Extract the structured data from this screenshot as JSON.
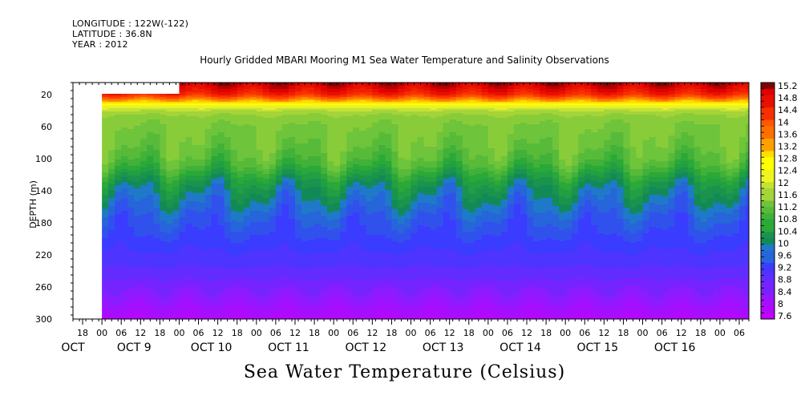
{
  "header": {
    "longitude": "LONGITUDE : 122W(-122)",
    "latitude": "LATITUDE : 36.8N",
    "year": "YEAR : 2012"
  },
  "colors": {
    "background": "#ffffff",
    "axis": "#000000"
  },
  "chart_data": {
    "type": "heatmap",
    "title": "Hourly Gridded MBARI Mooring M1 Sea Water Temperature and Salinity Observations",
    "ylabel": "DEPTH (m)",
    "caption": "Sea Water Temperature (Celsius)",
    "y_inverted": true,
    "y_range": [
      5,
      300
    ],
    "y_ticks": [
      20,
      60,
      100,
      140,
      180,
      220,
      260,
      300
    ],
    "x_range_hours": [
      -9,
      201
    ],
    "x_hour_ticks": [
      {
        "h": -6,
        "label": "18"
      },
      {
        "h": 0,
        "label": "00"
      },
      {
        "h": 6,
        "label": "06"
      },
      {
        "h": 12,
        "label": "12"
      },
      {
        "h": 18,
        "label": "18"
      },
      {
        "h": 24,
        "label": "00"
      },
      {
        "h": 30,
        "label": "06"
      },
      {
        "h": 36,
        "label": "12"
      },
      {
        "h": 42,
        "label": "18"
      },
      {
        "h": 48,
        "label": "00"
      },
      {
        "h": 54,
        "label": "06"
      },
      {
        "h": 60,
        "label": "12"
      },
      {
        "h": 66,
        "label": "18"
      },
      {
        "h": 72,
        "label": "00"
      },
      {
        "h": 78,
        "label": "06"
      },
      {
        "h": 84,
        "label": "12"
      },
      {
        "h": 90,
        "label": "18"
      },
      {
        "h": 96,
        "label": "00"
      },
      {
        "h": 102,
        "label": "06"
      },
      {
        "h": 108,
        "label": "12"
      },
      {
        "h": 114,
        "label": "18"
      },
      {
        "h": 120,
        "label": "00"
      },
      {
        "h": 126,
        "label": "06"
      },
      {
        "h": 132,
        "label": "12"
      },
      {
        "h": 138,
        "label": "18"
      },
      {
        "h": 144,
        "label": "00"
      },
      {
        "h": 150,
        "label": "06"
      },
      {
        "h": 156,
        "label": "12"
      },
      {
        "h": 162,
        "label": "18"
      },
      {
        "h": 168,
        "label": "00"
      },
      {
        "h": 174,
        "label": "06"
      },
      {
        "h": 180,
        "label": "12"
      },
      {
        "h": 186,
        "label": "18"
      },
      {
        "h": 192,
        "label": "00"
      },
      {
        "h": 198,
        "label": "06"
      }
    ],
    "x_date_labels": [
      {
        "h": 0,
        "label": "OCT  9"
      },
      {
        "h": 24,
        "label": "OCT 10"
      },
      {
        "h": 48,
        "label": "OCT 11"
      },
      {
        "h": 72,
        "label": "OCT 12"
      },
      {
        "h": 96,
        "label": "OCT 13"
      },
      {
        "h": 120,
        "label": "OCT 14"
      },
      {
        "h": 144,
        "label": "OCT 15"
      },
      {
        "h": 168,
        "label": "OCT 16"
      }
    ],
    "x_date_label_first": {
      "h": -9,
      "label": "OCT"
    },
    "data_start_hour": 0,
    "shallow_data_start_hour": 24,
    "shallow_data_start_depth": 20,
    "colorbar": {
      "min": 7.6,
      "max": 15.2,
      "step": 0.2,
      "labels": [
        15.2,
        14.8,
        14.4,
        14,
        13.6,
        13.2,
        12.8,
        12.4,
        12,
        11.6,
        11.2,
        10.8,
        10.4,
        10,
        9.6,
        9.2,
        8.8,
        8.4,
        8,
        7.6
      ],
      "stops": [
        {
          "v": 7.6,
          "c": "#c200ff"
        },
        {
          "v": 8.4,
          "c": "#8a1cff"
        },
        {
          "v": 9.2,
          "c": "#3a3cff"
        },
        {
          "v": 9.8,
          "c": "#1e7ac8"
        },
        {
          "v": 10.0,
          "c": "#128a58"
        },
        {
          "v": 10.6,
          "c": "#2aa838"
        },
        {
          "v": 11.2,
          "c": "#6ec43a"
        },
        {
          "v": 11.6,
          "c": "#a4d438"
        },
        {
          "v": 12.0,
          "c": "#e6f030"
        },
        {
          "v": 12.6,
          "c": "#ffff00"
        },
        {
          "v": 13.2,
          "c": "#ffa000"
        },
        {
          "v": 14.0,
          "c": "#ff4000"
        },
        {
          "v": 14.8,
          "c": "#e00000"
        },
        {
          "v": 15.2,
          "c": "#800000"
        }
      ]
    },
    "profile": {
      "depths": [
        5,
        10,
        15,
        20,
        25,
        30,
        35,
        40,
        45,
        50,
        60,
        70,
        80,
        90,
        100,
        110,
        120,
        130,
        140,
        150,
        160,
        170,
        180,
        190,
        200,
        210,
        220,
        230,
        240,
        250,
        260,
        270,
        280,
        290,
        300
      ],
      "temps": [
        15.0,
        14.8,
        14.6,
        14.3,
        13.6,
        12.8,
        12.1,
        11.7,
        11.5,
        11.4,
        11.3,
        11.25,
        11.2,
        11.1,
        11.0,
        10.8,
        10.5,
        10.2,
        10.0,
        9.85,
        9.7,
        9.55,
        9.45,
        9.35,
        9.25,
        9.15,
        9.05,
        8.95,
        8.85,
        8.7,
        8.55,
        8.4,
        8.2,
        8.0,
        7.8
      ]
    }
  }
}
